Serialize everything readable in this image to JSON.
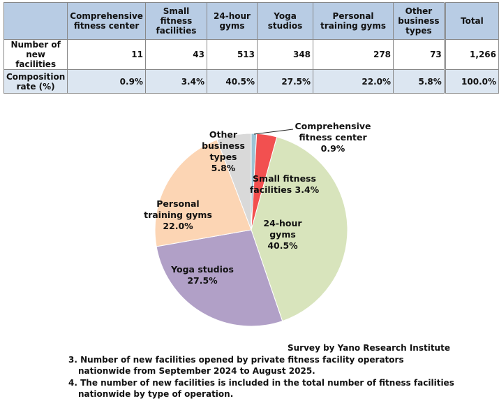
{
  "table": {
    "headers": [
      "",
      "Comprehensive fitness center",
      "Small fitness facilities",
      "24-hour gyms",
      "Yoga studios",
      "Personal training gyms",
      "Other business types",
      "Total"
    ],
    "rows": [
      {
        "label": "Number of new facilities",
        "values": [
          "11",
          "43",
          "513",
          "348",
          "278",
          "73",
          "1,266"
        ]
      },
      {
        "label": "Composition rate (%)",
        "values": [
          "0.9%",
          "3.4%",
          "40.5%",
          "27.5%",
          "22.0%",
          "5.8%",
          "100.0%"
        ]
      }
    ]
  },
  "chart_data": {
    "type": "pie",
    "categories": [
      "Comprehensive fitness center",
      "Small fitness facilities",
      "24-hour gyms",
      "Yoga studios",
      "Personal training gyms",
      "Other business types"
    ],
    "values": [
      0.9,
      3.4,
      40.5,
      27.5,
      22.0,
      5.8
    ],
    "labels": [
      "Comprehensive fitness center 0.9%",
      "Small fitness facilities 3.4%",
      "24-hour gyms 40.5%",
      "Yoga studios 27.5%",
      "Personal training gyms 22.0%",
      "Other business types 5.8%"
    ],
    "colors": [
      "#9dc3d4",
      "#f25050",
      "#d8e4bc",
      "#b1a0c7",
      "#fcd5b4",
      "#d9d9d9"
    ]
  },
  "source": "Survey by Yano Research Institute",
  "notes": [
    "3. Number of new facilities opened by private fitness facility operators nationwide from September 2024 to August 2025.",
    "4. The number of new facilities is included in the total number of fitness facilities nationwide by type of operation."
  ]
}
